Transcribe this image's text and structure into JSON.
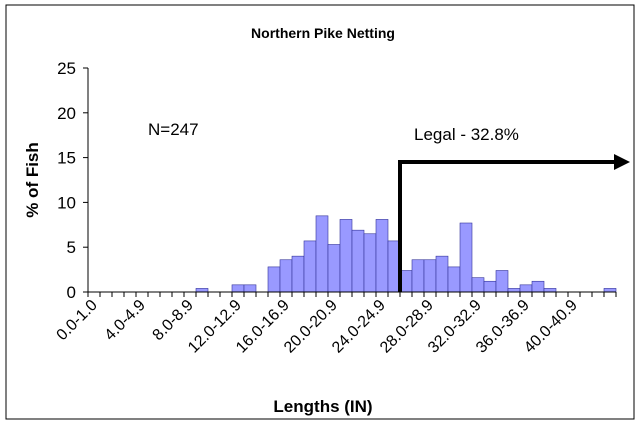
{
  "chart_data": {
    "type": "bar",
    "title": "Northern Pike Netting",
    "x_label": "Lengths (IN)",
    "y_label": "% of Fish",
    "annotations": [
      "N=247",
      "Legal - 32.8%"
    ],
    "categories": [
      "0.0-1.0",
      null,
      null,
      null,
      "4.0-4.9",
      null,
      null,
      null,
      "8.0-8.9",
      null,
      null,
      null,
      "12.0-12.9",
      null,
      null,
      null,
      "16.0-16.9",
      null,
      null,
      null,
      "20.0-20.9",
      null,
      null,
      null,
      "24.0-24.9",
      null,
      null,
      null,
      "28.0-28.9",
      null,
      null,
      null,
      "32.0-32.9",
      null,
      null,
      null,
      "36.0-36.9",
      null,
      null,
      null,
      "40.0-40.9",
      null,
      null,
      null
    ],
    "values": [
      0,
      0,
      0,
      0,
      0,
      0,
      0,
      0,
      0,
      0.4,
      0,
      0,
      0.8,
      0.8,
      0,
      2.8,
      3.6,
      4.0,
      5.7,
      8.5,
      5.3,
      8.1,
      6.9,
      6.5,
      8.1,
      5.7,
      2.4,
      3.6,
      3.6,
      4.0,
      2.8,
      7.7,
      1.6,
      1.2,
      2.4,
      0.4,
      0.8,
      1.2,
      0.4,
      0,
      0,
      0,
      0,
      0.4
    ],
    "color": "#9999ff",
    "ylim": [
      0,
      25
    ],
    "yticks": [
      0,
      5,
      10,
      15,
      20,
      25
    ],
    "grid": false
  }
}
